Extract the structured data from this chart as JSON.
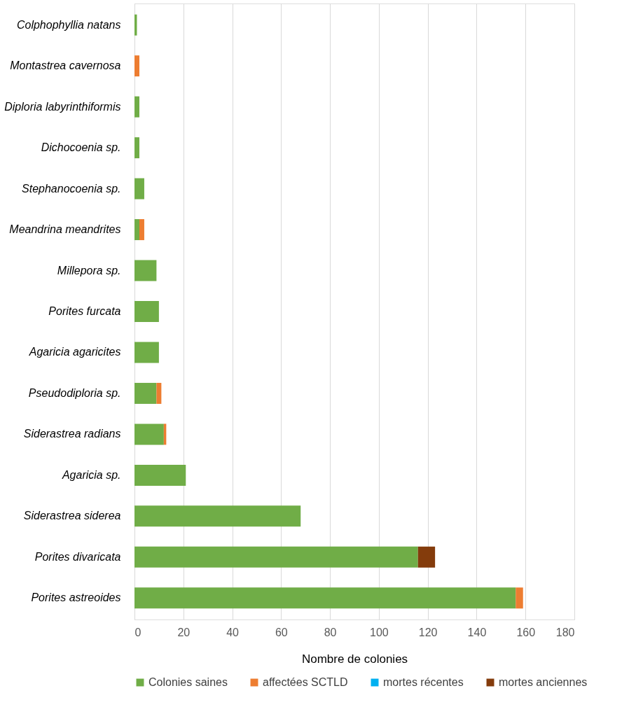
{
  "chart_data": {
    "type": "bar",
    "orientation": "horizontal",
    "stacked": true,
    "xlabel": "Nombre de colonies",
    "categories": [
      "Colphophyllia natans",
      "Montastrea cavernosa",
      "Diploria labyrinthiformis",
      "Dichocoenia sp.",
      "Stephanocoenia sp.",
      "Meandrina meandrites",
      "Millepora sp.",
      "Porites furcata",
      "Agaricia agaricites",
      "Pseudodiploria sp.",
      "Siderastrea radians",
      "Agaricia sp.",
      "Siderastrea siderea",
      "Porites divaricata",
      "Porites astreoides"
    ],
    "series": [
      {
        "name": "Colonies saines",
        "color": "#70ad47",
        "values": [
          1,
          0,
          2,
          2,
          4,
          2,
          9,
          10,
          10,
          9,
          12,
          21,
          68,
          116,
          156
        ]
      },
      {
        "name": "affectées SCTLD",
        "color": "#ed7d31",
        "values": [
          0,
          2,
          0,
          0,
          0,
          2,
          0,
          0,
          0,
          2,
          1,
          0,
          0,
          0,
          3
        ]
      },
      {
        "name": "mortes récentes",
        "color": "#00b0f0",
        "values": [
          0,
          0,
          0,
          0,
          0,
          0,
          0,
          0,
          0,
          0,
          0,
          0,
          0,
          0,
          0
        ]
      },
      {
        "name": "mortes anciennes",
        "color": "#843c0c",
        "values": [
          0,
          0,
          0,
          0,
          0,
          0,
          0,
          0,
          0,
          0,
          0,
          0,
          0,
          7,
          0
        ]
      }
    ],
    "xlim": [
      0,
      180
    ],
    "xticks": [
      0,
      20,
      40,
      60,
      80,
      100,
      120,
      140,
      160,
      180
    ],
    "grid": "x",
    "legend": "bottom"
  }
}
